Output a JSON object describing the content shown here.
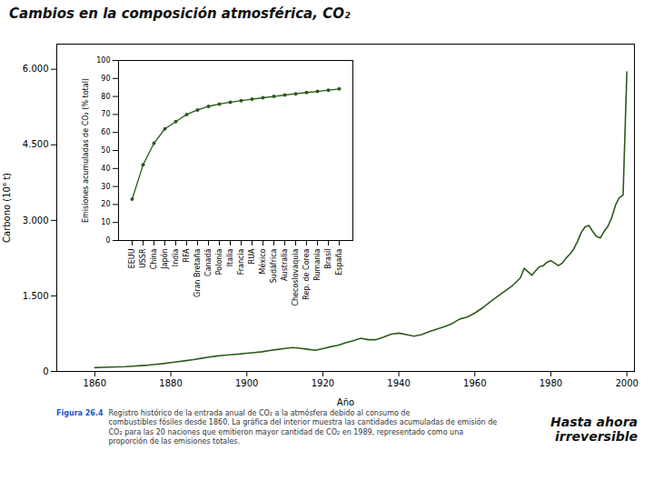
{
  "chart_data": [
    {
      "type": "line",
      "title": "Cambios en la composición atmosférica, CO₂",
      "xlabel": "Año",
      "ylabel": "Carbono (10⁶ t)",
      "color": "#2d5a1b",
      "x": [
        1860,
        1862,
        1864,
        1866,
        1868,
        1870,
        1872,
        1874,
        1876,
        1878,
        1880,
        1882,
        1884,
        1886,
        1888,
        1890,
        1892,
        1894,
        1896,
        1898,
        1900,
        1902,
        1904,
        1906,
        1908,
        1910,
        1912,
        1914,
        1916,
        1918,
        1920,
        1922,
        1924,
        1926,
        1928,
        1930,
        1932,
        1934,
        1936,
        1938,
        1940,
        1942,
        1944,
        1946,
        1948,
        1950,
        1952,
        1954,
        1956,
        1958,
        1960,
        1962,
        1964,
        1966,
        1968,
        1970,
        1972,
        1973,
        1974,
        1975,
        1976,
        1977,
        1978,
        1979,
        1980,
        1981,
        1982,
        1983,
        1984,
        1985,
        1986,
        1987,
        1988,
        1989,
        1990,
        1991,
        1992,
        1993,
        1994,
        1995,
        1996,
        1997,
        1998,
        1999,
        2000
      ],
      "values": [
        75,
        80,
        85,
        90,
        95,
        105,
        115,
        125,
        140,
        155,
        175,
        195,
        215,
        235,
        260,
        285,
        305,
        320,
        335,
        345,
        360,
        375,
        390,
        415,
        435,
        455,
        475,
        460,
        440,
        420,
        450,
        490,
        520,
        570,
        610,
        660,
        630,
        630,
        680,
        740,
        760,
        730,
        700,
        730,
        790,
        840,
        890,
        950,
        1040,
        1080,
        1160,
        1260,
        1380,
        1490,
        1600,
        1710,
        1860,
        2050,
        1980,
        1910,
        2000,
        2080,
        2100,
        2170,
        2200,
        2150,
        2100,
        2150,
        2250,
        2330,
        2430,
        2580,
        2760,
        2870,
        2900,
        2780,
        2680,
        2650,
        2780,
        2880,
        3050,
        3300,
        3450,
        3500,
        5950
      ],
      "xlim": [
        1850,
        2002
      ],
      "ylim": [
        0,
        6500
      ],
      "xticks": [
        1860,
        1880,
        1900,
        1920,
        1940,
        1960,
        1980,
        2000
      ],
      "yticks": [
        0,
        {
          "value": 1500,
          "label": "1.500"
        },
        {
          "value": 3000,
          "label": "3.000"
        },
        {
          "value": 4500,
          "label": "4.500"
        },
        {
          "value": 6000,
          "label": "6.000"
        }
      ],
      "annotations": [
        "Figura 26.4",
        "Registro histórico de la entrada anual de CO₂ a la atmósfera debido al consumo de\ncombustibles fósiles desde 1860. La gráfica del interior muestra las cantidades acumuladas de emisión de\nCO₂ para las 20 naciones que emitieron mayor cantidad de CO₂ en 1989, representado como una\nproporción de las emisiones totales.",
        "Hasta ahora\nirreversible"
      ]
    },
    {
      "type": "line",
      "ylabel": "Emisiones acumuladas de CO₂ (% total)",
      "color": "#2d5a1b",
      "marker": "circle",
      "categories": [
        "EEUU",
        "USSR",
        "China",
        "Japón",
        "India",
        "RFA",
        "Gran Bretaña",
        "Canadá",
        "Polonia",
        "Italia",
        "Francia",
        "RUA",
        "México",
        "Sudáfrica",
        "Australia",
        "Checoslovaquia",
        "Rep. de Corea",
        "Rumania",
        "Brasil",
        "España"
      ],
      "values": [
        23,
        42,
        54,
        62,
        66,
        70,
        72.5,
        74.5,
        75.8,
        76.8,
        77.7,
        78.5,
        79.3,
        80.0,
        80.8,
        81.5,
        82.2,
        82.8,
        83.5,
        84.2
      ],
      "ylim": [
        0,
        100
      ],
      "yticks": [
        0,
        10,
        20,
        30,
        40,
        50,
        60,
        70,
        80,
        90,
        100
      ]
    }
  ]
}
